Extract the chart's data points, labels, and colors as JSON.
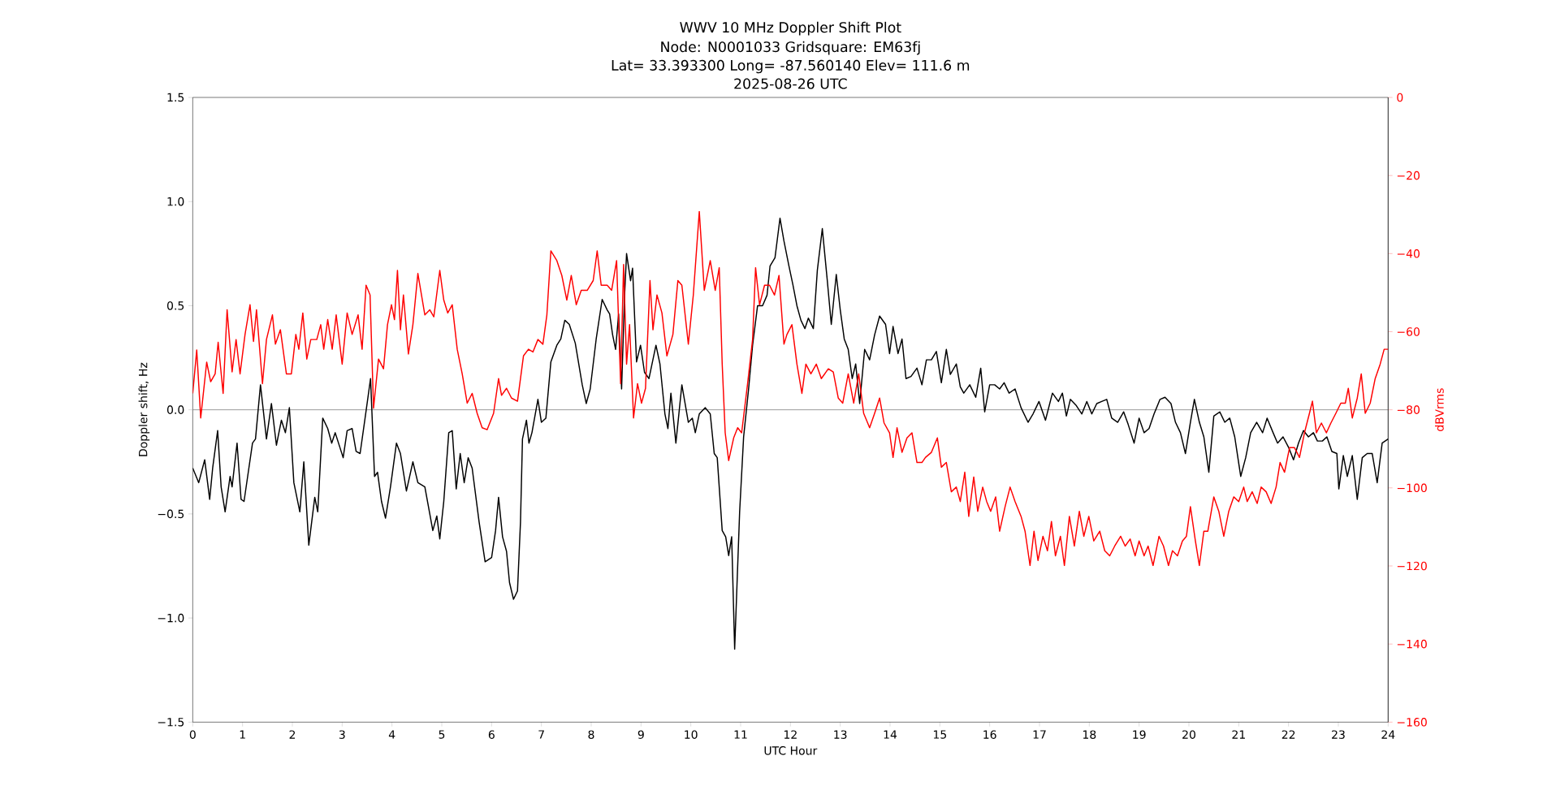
{
  "chart_data": {
    "type": "line",
    "title": "WWV 10 MHz Doppler Shift Plot",
    "subtitle": "Node:  N0001033     Gridsquare:  EM63fj",
    "annotations": [
      "Lat= 33.393300    Long= -87.560140    Elev= 111.6 m",
      "2025-08-26  UTC"
    ],
    "xlabel": "UTC Hour",
    "ylabel": "Doppler shift, Hz",
    "y2label": "dBVrms",
    "xlim": [
      0,
      24
    ],
    "ylim": [
      -1.5,
      1.5
    ],
    "y2lim": [
      -160,
      0
    ],
    "xticks": [
      0,
      1,
      2,
      3,
      4,
      5,
      6,
      7,
      8,
      9,
      10,
      11,
      12,
      13,
      14,
      15,
      16,
      17,
      18,
      19,
      20,
      21,
      22,
      23,
      24
    ],
    "yticks": [
      {
        "value": -1.5,
        "label": "−1.5"
      },
      {
        "value": -1.0,
        "label": "−1.0"
      },
      {
        "value": -0.5,
        "label": "−0.5"
      },
      {
        "value": 0.0,
        "label": "0.0"
      },
      {
        "value": 0.5,
        "label": "0.5"
      },
      {
        "value": 1.0,
        "label": "1.0"
      },
      {
        "value": 1.5,
        "label": "1.5"
      }
    ],
    "y2ticks": [
      {
        "value": -160,
        "label": "−160"
      },
      {
        "value": -140,
        "label": "−140"
      },
      {
        "value": -120,
        "label": "−120"
      },
      {
        "value": -100,
        "label": "−100"
      },
      {
        "value": -80,
        "label": "−80"
      },
      {
        "value": -60,
        "label": "−60"
      },
      {
        "value": -40,
        "label": "−40"
      },
      {
        "value": -20,
        "label": "−20"
      },
      0
    ],
    "ref_lines": [
      {
        "axis": "y",
        "value": 0,
        "color": "#808080"
      }
    ],
    "series": [
      {
        "color": "#000000",
        "x": [
          0,
          0.12,
          0.24,
          0.34,
          0.4,
          0.5,
          0.57,
          0.65,
          0.75,
          0.79,
          0.89,
          0.97,
          1.03,
          1.2,
          1.26,
          1.36,
          1.48,
          1.58,
          1.68,
          1.78,
          1.86,
          1.94,
          2.03,
          2.15,
          2.23,
          2.33,
          2.45,
          2.51,
          2.61,
          2.71,
          2.79,
          2.86,
          3.02,
          3.1,
          3.2,
          3.28,
          3.36,
          3.46,
          3.57,
          3.65,
          3.71,
          3.79,
          3.87,
          3.97,
          4.09,
          4.17,
          4.29,
          4.42,
          4.52,
          4.66,
          4.82,
          4.9,
          4.96,
          5.04,
          5.14,
          5.21,
          5.29,
          5.37,
          5.45,
          5.53,
          5.61,
          5.75,
          5.87,
          6.0,
          6.08,
          6.14,
          6.22,
          6.3,
          6.36,
          6.44,
          6.52,
          6.58,
          6.62,
          6.7,
          6.75,
          6.81,
          6.93,
          7.0,
          7.09,
          7.19,
          7.31,
          7.39,
          7.47,
          7.56,
          7.68,
          7.82,
          7.9,
          7.98,
          8.1,
          8.22,
          8.32,
          8.37,
          8.43,
          8.49,
          8.55,
          8.61,
          8.67,
          8.71,
          8.79,
          8.83,
          8.91,
          8.99,
          9.07,
          9.16,
          9.3,
          9.38,
          9.48,
          9.54,
          9.6,
          9.7,
          9.82,
          9.95,
          10.03,
          10.09,
          10.17,
          10.29,
          10.39,
          10.47,
          10.53,
          10.63,
          10.7,
          10.76,
          10.82,
          10.88,
          10.98,
          11.06,
          11.16,
          11.24,
          11.34,
          11.44,
          11.53,
          11.59,
          11.69,
          11.79,
          11.87,
          11.97,
          12.05,
          12.13,
          12.21,
          12.29,
          12.36,
          12.46,
          12.54,
          12.64,
          12.74,
          12.82,
          12.92,
          13.0,
          13.08,
          13.16,
          13.24,
          13.31,
          13.39,
          13.49,
          13.59,
          13.69,
          13.79,
          13.91,
          13.99,
          14.06,
          14.16,
          14.24,
          14.32,
          14.42,
          14.54,
          14.64,
          14.73,
          14.83,
          14.93,
          15.03,
          15.13,
          15.21,
          15.33,
          15.41,
          15.48,
          15.6,
          15.72,
          15.82,
          15.9,
          16.0,
          16.1,
          16.2,
          16.29,
          16.39,
          16.51,
          16.63,
          16.77,
          16.87,
          16.99,
          17.12,
          17.26,
          17.38,
          17.46,
          17.54,
          17.62,
          17.74,
          17.85,
          17.95,
          18.05,
          18.15,
          18.25,
          18.35,
          18.45,
          18.57,
          18.69,
          18.78,
          18.9,
          19.0,
          19.1,
          19.2,
          19.3,
          19.42,
          19.52,
          19.64,
          19.73,
          19.83,
          19.93,
          20.03,
          20.11,
          20.21,
          20.3,
          20.4,
          20.5,
          20.62,
          20.72,
          20.82,
          20.92,
          21.04,
          21.14,
          21.24,
          21.36,
          21.48,
          21.57,
          21.69,
          21.78,
          21.89,
          22.0,
          22.1,
          22.2,
          22.3,
          22.4,
          22.5,
          22.58,
          22.68,
          22.77,
          22.87,
          22.97,
          23.01,
          23.1,
          23.18,
          23.28,
          23.38,
          23.48,
          23.58,
          23.68,
          23.78,
          23.88,
          24.0
        ],
        "values": [
          -0.28,
          -0.35,
          -0.24,
          -0.43,
          -0.28,
          -0.1,
          -0.37,
          -0.49,
          -0.32,
          -0.37,
          -0.16,
          -0.43,
          -0.44,
          -0.16,
          -0.14,
          0.12,
          -0.14,
          0.03,
          -0.17,
          -0.05,
          -0.11,
          0.01,
          -0.35,
          -0.49,
          -0.25,
          -0.65,
          -0.42,
          -0.49,
          -0.04,
          -0.09,
          -0.16,
          -0.11,
          -0.23,
          -0.1,
          -0.09,
          -0.2,
          -0.21,
          -0.04,
          0.15,
          -0.32,
          -0.3,
          -0.44,
          -0.52,
          -0.37,
          -0.16,
          -0.21,
          -0.39,
          -0.25,
          -0.35,
          -0.37,
          -0.58,
          -0.51,
          -0.62,
          -0.44,
          -0.11,
          -0.1,
          -0.38,
          -0.21,
          -0.35,
          -0.23,
          -0.28,
          -0.54,
          -0.73,
          -0.71,
          -0.58,
          -0.42,
          -0.61,
          -0.68,
          -0.83,
          -0.91,
          -0.87,
          -0.54,
          -0.14,
          -0.05,
          -0.16,
          -0.11,
          0.05,
          -0.06,
          -0.04,
          0.23,
          0.31,
          0.34,
          0.43,
          0.41,
          0.32,
          0.12,
          0.03,
          0.1,
          0.34,
          0.53,
          0.48,
          0.46,
          0.36,
          0.29,
          0.46,
          0.1,
          0.55,
          0.75,
          0.62,
          0.68,
          0.23,
          0.31,
          0.18,
          0.15,
          0.31,
          0.22,
          -0.02,
          -0.09,
          0.08,
          -0.16,
          0.12,
          -0.06,
          -0.04,
          -0.11,
          -0.02,
          0.01,
          -0.02,
          -0.21,
          -0.23,
          -0.58,
          -0.61,
          -0.7,
          -0.61,
          -1.15,
          -0.49,
          -0.13,
          0.1,
          0.31,
          0.5,
          0.5,
          0.55,
          0.69,
          0.73,
          0.92,
          0.81,
          0.69,
          0.6,
          0.5,
          0.43,
          0.39,
          0.44,
          0.39,
          0.67,
          0.87,
          0.62,
          0.41,
          0.65,
          0.48,
          0.34,
          0.29,
          0.15,
          0.22,
          0.03,
          0.29,
          0.24,
          0.36,
          0.45,
          0.41,
          0.27,
          0.4,
          0.27,
          0.34,
          0.15,
          0.16,
          0.2,
          0.12,
          0.24,
          0.24,
          0.28,
          0.13,
          0.29,
          0.17,
          0.22,
          0.11,
          0.08,
          0.12,
          0.06,
          0.2,
          -0.01,
          0.12,
          0.12,
          0.1,
          0.13,
          0.08,
          0.1,
          0.01,
          -0.06,
          -0.02,
          0.04,
          -0.05,
          0.08,
          0.04,
          0.08,
          -0.03,
          0.05,
          0.02,
          -0.02,
          0.04,
          -0.02,
          0.03,
          0.04,
          0.05,
          -0.04,
          -0.06,
          -0.01,
          -0.07,
          -0.16,
          -0.04,
          -0.11,
          -0.09,
          -0.02,
          0.05,
          0.06,
          0.03,
          -0.06,
          -0.11,
          -0.21,
          -0.06,
          0.05,
          -0.06,
          -0.13,
          -0.3,
          -0.03,
          -0.01,
          -0.06,
          -0.04,
          -0.13,
          -0.32,
          -0.23,
          -0.11,
          -0.06,
          -0.11,
          -0.04,
          -0.11,
          -0.16,
          -0.13,
          -0.18,
          -0.24,
          -0.16,
          -0.1,
          -0.13,
          -0.11,
          -0.15,
          -0.15,
          -0.13,
          -0.2,
          -0.21,
          -0.38,
          -0.22,
          -0.32,
          -0.22,
          -0.43,
          -0.23,
          -0.21,
          -0.21,
          -0.35,
          -0.16,
          -0.14
        ]
      },
      {
        "color": "#ff0000",
        "axis": "y2",
        "x": [
          0,
          0.08,
          0.16,
          0.28,
          0.36,
          0.45,
          0.51,
          0.61,
          0.69,
          0.79,
          0.87,
          0.95,
          1.05,
          1.15,
          1.22,
          1.28,
          1.4,
          1.48,
          1.6,
          1.66,
          1.76,
          1.88,
          1.98,
          2.07,
          2.13,
          2.21,
          2.29,
          2.37,
          2.49,
          2.57,
          2.63,
          2.71,
          2.8,
          2.88,
          3.0,
          3.1,
          3.2,
          3.32,
          3.4,
          3.48,
          3.56,
          3.63,
          3.73,
          3.83,
          3.91,
          3.99,
          4.05,
          4.11,
          4.17,
          4.23,
          4.33,
          4.42,
          4.52,
          4.66,
          4.76,
          4.84,
          4.96,
          5.04,
          5.12,
          5.21,
          5.31,
          5.41,
          5.51,
          5.61,
          5.71,
          5.81,
          5.91,
          6.04,
          6.14,
          6.2,
          6.3,
          6.4,
          6.52,
          6.64,
          6.74,
          6.83,
          6.93,
          7.03,
          7.11,
          7.19,
          7.31,
          7.41,
          7.51,
          7.6,
          7.7,
          7.8,
          7.92,
          8.04,
          8.12,
          8.2,
          8.32,
          8.41,
          8.51,
          8.59,
          8.65,
          8.71,
          8.77,
          8.85,
          8.93,
          9.01,
          9.09,
          9.18,
          9.24,
          9.32,
          9.42,
          9.52,
          9.64,
          9.74,
          9.82,
          9.95,
          10.05,
          10.17,
          10.27,
          10.39,
          10.49,
          10.57,
          10.63,
          10.69,
          10.76,
          10.86,
          10.94,
          11.02,
          11.14,
          11.24,
          11.3,
          11.38,
          11.48,
          11.58,
          11.68,
          11.77,
          11.87,
          11.93,
          12.03,
          12.13,
          12.23,
          12.31,
          12.41,
          12.52,
          12.62,
          12.76,
          12.86,
          12.96,
          13.05,
          13.16,
          13.27,
          13.37,
          13.47,
          13.59,
          13.69,
          13.79,
          13.88,
          13.99,
          14.06,
          14.14,
          14.24,
          14.34,
          14.44,
          14.54,
          14.64,
          14.71,
          14.83,
          14.95,
          15.03,
          15.13,
          15.23,
          15.33,
          15.41,
          15.5,
          15.58,
          15.68,
          15.76,
          15.86,
          15.94,
          16.02,
          16.12,
          16.2,
          16.31,
          16.41,
          16.51,
          16.63,
          16.71,
          16.81,
          16.89,
          16.97,
          17.07,
          17.16,
          17.24,
          17.32,
          17.42,
          17.5,
          17.6,
          17.7,
          17.8,
          17.89,
          17.99,
          18.09,
          18.21,
          18.31,
          18.41,
          18.51,
          18.63,
          18.72,
          18.82,
          18.92,
          19.0,
          19.1,
          19.18,
          19.28,
          19.4,
          19.49,
          19.59,
          19.67,
          19.77,
          19.87,
          19.95,
          20.03,
          20.13,
          20.21,
          20.3,
          20.38,
          20.5,
          20.6,
          20.7,
          20.8,
          20.9,
          21.0,
          21.1,
          21.17,
          21.27,
          21.37,
          21.45,
          21.55,
          21.65,
          21.75,
          21.83,
          21.92,
          22.02,
          22.12,
          22.22,
          22.32,
          22.42,
          22.48,
          22.56,
          22.66,
          22.76,
          22.85,
          22.95,
          23.05,
          23.14,
          23.2,
          23.28,
          23.38,
          23.46,
          23.54,
          23.64,
          23.74,
          23.84,
          23.92,
          24.0
        ],
        "values": [
          -75.8,
          -64.7,
          -82.1,
          -67.8,
          -72.8,
          -70.8,
          -62.7,
          -75.8,
          -54.4,
          -70.3,
          -62.0,
          -70.8,
          -60.7,
          -53.1,
          -62.5,
          -54.4,
          -73.3,
          -62.0,
          -55.7,
          -63.2,
          -59.5,
          -70.8,
          -70.8,
          -60.7,
          -64.5,
          -55.2,
          -67.0,
          -62.0,
          -62.0,
          -58.2,
          -64.5,
          -56.9,
          -64.5,
          -55.7,
          -68.3,
          -55.2,
          -60.7,
          -55.7,
          -64.5,
          -48.1,
          -50.6,
          -79.6,
          -67.0,
          -69.5,
          -58.2,
          -53.1,
          -56.9,
          -44.3,
          -59.5,
          -50.6,
          -65.7,
          -58.2,
          -45.1,
          -55.7,
          -54.4,
          -56.2,
          -44.3,
          -51.9,
          -55.2,
          -53.1,
          -64.5,
          -70.8,
          -78.3,
          -75.8,
          -80.9,
          -84.6,
          -85.1,
          -80.9,
          -72.0,
          -76.3,
          -74.5,
          -77.0,
          -77.8,
          -66.2,
          -64.5,
          -65.2,
          -62.0,
          -63.2,
          -55.7,
          -39.3,
          -41.8,
          -45.6,
          -51.9,
          -45.6,
          -53.1,
          -49.4,
          -49.4,
          -46.9,
          -39.3,
          -48.1,
          -48.1,
          -49.4,
          -41.8,
          -73.3,
          -42.8,
          -68.3,
          -58.2,
          -82.1,
          -73.3,
          -78.3,
          -74.5,
          -46.9,
          -59.5,
          -50.6,
          -55.2,
          -66.2,
          -60.7,
          -46.9,
          -48.1,
          -63.2,
          -50.6,
          -29.2,
          -49.4,
          -41.8,
          -49.4,
          -43.6,
          -68.3,
          -85.9,
          -93.0,
          -87.2,
          -84.6,
          -85.9,
          -73.3,
          -62.0,
          -43.6,
          -53.1,
          -48.1,
          -48.1,
          -50.6,
          -45.6,
          -63.2,
          -60.7,
          -58.2,
          -68.3,
          -75.8,
          -68.3,
          -70.8,
          -68.3,
          -72.0,
          -69.5,
          -70.3,
          -77.0,
          -78.3,
          -70.8,
          -78.3,
          -70.8,
          -80.9,
          -84.6,
          -80.9,
          -77.0,
          -83.4,
          -85.9,
          -92.2,
          -84.6,
          -90.9,
          -87.2,
          -85.9,
          -93.5,
          -93.5,
          -92.2,
          -90.9,
          -87.2,
          -94.7,
          -93.5,
          -101.0,
          -99.8,
          -103.5,
          -96.0,
          -107.3,
          -97.2,
          -106.0,
          -99.8,
          -103.5,
          -106.0,
          -102.3,
          -111.1,
          -104.8,
          -99.8,
          -103.5,
          -107.3,
          -111.1,
          -119.9,
          -111.1,
          -118.6,
          -112.4,
          -116.1,
          -108.6,
          -117.4,
          -112.4,
          -119.9,
          -107.3,
          -114.9,
          -106.0,
          -112.4,
          -107.3,
          -113.6,
          -111.1,
          -116.1,
          -117.4,
          -114.9,
          -112.4,
          -114.9,
          -113.1,
          -117.4,
          -113.6,
          -117.4,
          -114.9,
          -119.9,
          -112.4,
          -114.9,
          -119.9,
          -116.1,
          -117.4,
          -113.6,
          -112.4,
          -104.8,
          -113.6,
          -119.9,
          -111.1,
          -111.1,
          -102.3,
          -106.0,
          -112.4,
          -106.0,
          -102.3,
          -103.5,
          -99.8,
          -103.5,
          -101.0,
          -104.0,
          -99.8,
          -101.0,
          -104.0,
          -99.8,
          -93.5,
          -96.0,
          -89.7,
          -89.7,
          -92.2,
          -85.9,
          -80.9,
          -77.8,
          -85.9,
          -83.4,
          -85.9,
          -83.4,
          -80.9,
          -78.3,
          -78.3,
          -74.5,
          -82.1,
          -77.0,
          -70.8,
          -80.9,
          -78.3,
          -72.0,
          -68.3,
          -64.5,
          -64.5
        ]
      }
    ]
  }
}
